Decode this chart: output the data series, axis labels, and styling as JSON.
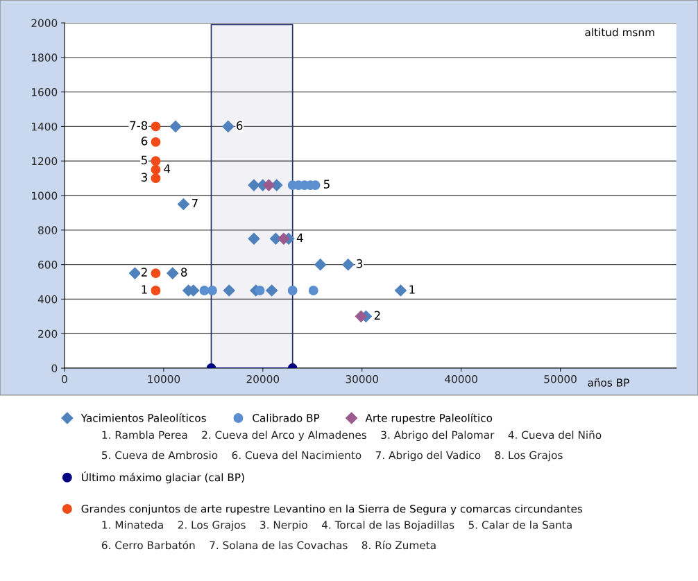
{
  "chart_data": {
    "type": "scatter",
    "xlabel": "años BP",
    "ylabel": "altitud msnm",
    "xlim": [
      0,
      61700
    ],
    "xticks": [
      0,
      10000,
      20000,
      30000,
      40000,
      50000
    ],
    "ylim": [
      0,
      2000
    ],
    "yticks": [
      0,
      200,
      400,
      600,
      800,
      1000,
      1200,
      1400,
      1600,
      1800,
      2000
    ],
    "grid": "y",
    "legend": "bottom",
    "series": [
      {
        "name": "Yacimientos Paleolíticos",
        "marker": "diamond",
        "color": "#4f81bd",
        "x": [
          11200,
          16500,
          19100,
          20000,
          21400,
          12000,
          19100,
          21300,
          22600,
          25800,
          28600,
          7100,
          10900,
          12500,
          13000,
          16600,
          19300,
          20900,
          33900,
          30400
        ],
        "values": [
          1400,
          1400,
          1060,
          1060,
          1060,
          950,
          750,
          750,
          750,
          600,
          600,
          550,
          550,
          450,
          450,
          450,
          450,
          450,
          450,
          300
        ]
      },
      {
        "name": "Calibrado BP",
        "marker": "circle",
        "color": "#5b8fd0",
        "x": [
          23000,
          23600,
          24200,
          24800,
          25300,
          14100,
          14600,
          14900,
          19700,
          23000,
          25100
        ],
        "values": [
          1060,
          1060,
          1060,
          1060,
          1060,
          450,
          null,
          450,
          450,
          450,
          450
        ]
      },
      {
        "name": "Arte rupestre Paleolítico",
        "marker": "diamond",
        "color": "#9b5b8f",
        "x": [
          20600,
          22100,
          29900
        ],
        "values": [
          1060,
          750,
          300
        ]
      },
      {
        "name": "Último máximo glaciar (cal BP)",
        "type": "line",
        "marker": "circle",
        "color": "#000080",
        "x": [
          14800,
          23000
        ],
        "values": [
          0,
          0
        ]
      },
      {
        "name": "Grandes conjuntos de arte rupestre Levantino en la Sierra de Segura y comarcas circundantes",
        "marker": "circle",
        "color": "#f24b17",
        "x": [
          9200,
          9200,
          9200,
          9200,
          9200,
          9200,
          9200
        ],
        "values": [
          450,
          550,
          1100,
          1150,
          1200,
          1310,
          1400
        ]
      }
    ],
    "bands": [
      {
        "axis": "x",
        "from": 14800,
        "to": 23000,
        "color": "#1f2a6b"
      }
    ],
    "annotations": [
      {
        "text": "6",
        "x": 16500,
        "y": 1400
      },
      {
        "text": "5",
        "x": 25300,
        "y": 1060
      },
      {
        "text": "7",
        "x": 12000,
        "y": 950
      },
      {
        "text": "4",
        "x": 22600,
        "y": 750
      },
      {
        "text": "3",
        "x": 28600,
        "y": 600
      },
      {
        "text": "8",
        "x": 10900,
        "y": 550
      },
      {
        "text": "1",
        "x": 33900,
        "y": 450
      },
      {
        "text": "2",
        "x": 30400,
        "y": 300
      },
      {
        "text": "7-8",
        "x": 9200,
        "y": 1400
      },
      {
        "text": "6",
        "x": 9200,
        "y": 1310
      },
      {
        "text": "5",
        "x": 9200,
        "y": 1200
      },
      {
        "text": "4",
        "x": 9200,
        "y": 1150
      },
      {
        "text": "3",
        "x": 9200,
        "y": 1100
      },
      {
        "text": "2",
        "x": 9200,
        "y": 550
      },
      {
        "text": "1",
        "x": 9200,
        "y": 450
      },
      "1. Rambla Perea    2. Cueva del Arco y Almadenes    3. Abrigo del Palomar    4. Cueva del Niño",
      "5. Cueva de Ambrosio    6. Cueva del Nacimiento    7. Abrigo del Vadico    8. Los Grajos",
      "1. Minateda    2. Los Grajos    3. Nerpio    4. Torcal de las Bojadillas    5. Calar de la Santa",
      "6. Cerro Barbatón    7. Solana de las Covachas    8. Río Zumeta"
    ]
  }
}
